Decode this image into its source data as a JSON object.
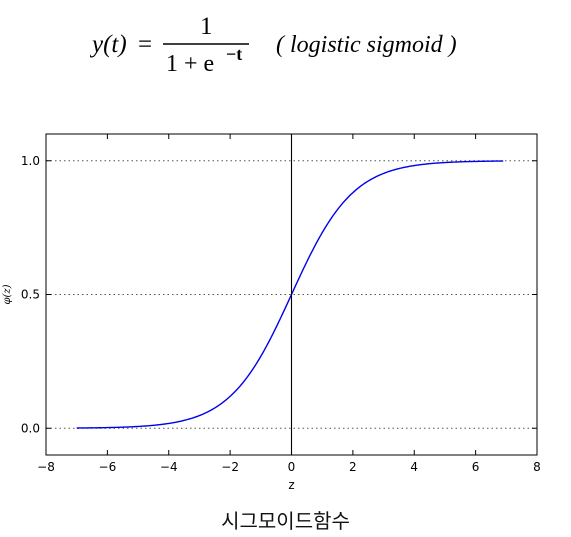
{
  "formula": {
    "lhs": "y(t)",
    "equals": "=",
    "numerator": "1",
    "denominator_prefix": "1 + e",
    "exponent": "−t",
    "annotation": "( logistic sigmoid )"
  },
  "chart_data": {
    "type": "line",
    "title": "",
    "xlabel": "z",
    "ylabel": "φ(z)",
    "xlim": [
      -8,
      8
    ],
    "ylim": [
      -0.1,
      1.1
    ],
    "xticks": [
      -8,
      -6,
      -4,
      -2,
      0,
      2,
      4,
      6,
      8
    ],
    "xtick_labels": [
      "−8",
      "−6",
      "−4",
      "−2",
      "0",
      "2",
      "4",
      "6",
      "8"
    ],
    "yticks": [
      0.0,
      0.5,
      1.0
    ],
    "ytick_labels": [
      "0.0",
      "0.5",
      "1.0"
    ],
    "hlines": [
      0.0,
      0.5,
      1.0
    ],
    "vline": 0,
    "grid": "dotted horizontal at y ticks",
    "series": [
      {
        "color": "#0000ee",
        "function": "1/(1+exp(-z))",
        "x": [
          -7.0,
          -6.0,
          -5.0,
          -4.0,
          -3.0,
          -2.0,
          -1.5,
          -1.0,
          -0.5,
          0.0,
          0.5,
          1.0,
          1.5,
          2.0,
          3.0,
          4.0,
          5.0,
          6.0,
          6.9
        ],
        "y": [
          0.0009,
          0.0025,
          0.0067,
          0.018,
          0.047,
          0.119,
          0.182,
          0.269,
          0.378,
          0.5,
          0.622,
          0.731,
          0.818,
          0.881,
          0.953,
          0.982,
          0.993,
          0.9975,
          0.999
        ]
      }
    ]
  },
  "caption": "시그모이드함수"
}
